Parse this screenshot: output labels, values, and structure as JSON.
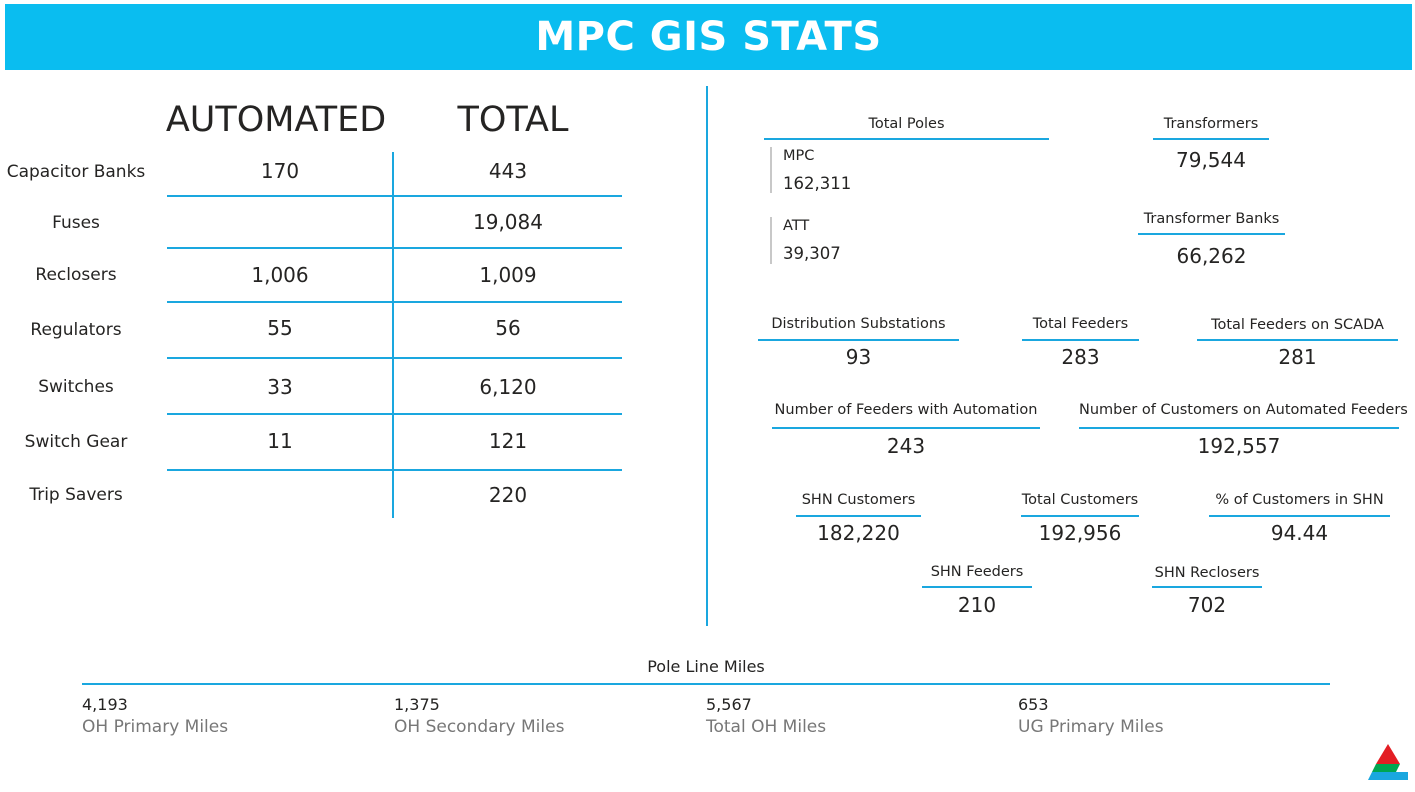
{
  "header": {
    "title": "MPC GIS STATS"
  },
  "device_table": {
    "col_automated": "AUTOMATED",
    "col_total": "TOTAL",
    "rows": [
      {
        "label": "Capacitor Banks",
        "automated": "170",
        "total": "443"
      },
      {
        "label": "Fuses",
        "automated": "",
        "total": "19,084"
      },
      {
        "label": "Reclosers",
        "automated": "1,006",
        "total": "1,009"
      },
      {
        "label": "Regulators",
        "automated": "55",
        "total": "56"
      },
      {
        "label": "Switches",
        "automated": "33",
        "total": "6,120"
      },
      {
        "label": "Switch Gear",
        "automated": "11",
        "total": "121"
      },
      {
        "label": "Trip Savers",
        "automated": "",
        "total": "220"
      }
    ]
  },
  "poles": {
    "label": "Total Poles",
    "mpc_label": "MPC",
    "mpc_value": "162,311",
    "att_label": "ATT",
    "att_value": "39,307"
  },
  "cards": {
    "transformers": {
      "label": "Transformers",
      "value": "79,544"
    },
    "transformer_banks": {
      "label": "Transformer Banks",
      "value": "66,262"
    },
    "distribution_substations": {
      "label": "Distribution Substations",
      "value": "93"
    },
    "total_feeders": {
      "label": "Total Feeders",
      "value": "283"
    },
    "feeders_scada": {
      "label": "Total Feeders on SCADA",
      "value": "281"
    },
    "feeders_automation": {
      "label": "Number of Feeders with Automation",
      "value": "243"
    },
    "customers_automated": {
      "label": "Number of Customers on Automated Feeders",
      "value": "192,557"
    },
    "shn_customers": {
      "label": "SHN Customers",
      "value": "182,220"
    },
    "total_customers": {
      "label": "Total Customers",
      "value": "192,956"
    },
    "pct_shn": {
      "label": "% of Customers in SHN",
      "value": "94.44"
    },
    "shn_feeders": {
      "label": "SHN Feeders",
      "value": "210"
    },
    "shn_reclosers": {
      "label": "SHN Reclosers",
      "value": "702"
    }
  },
  "pole_line_miles": {
    "title": "Pole Line Miles",
    "items": [
      {
        "value": "4,193",
        "label": "OH Primary Miles"
      },
      {
        "value": "1,375",
        "label": "OH Secondary Miles"
      },
      {
        "value": "5,567",
        "label": "Total OH Miles"
      },
      {
        "value": "653",
        "label": "UG Primary Miles"
      }
    ]
  },
  "logo": {
    "icon": "company-triangle-logo"
  }
}
